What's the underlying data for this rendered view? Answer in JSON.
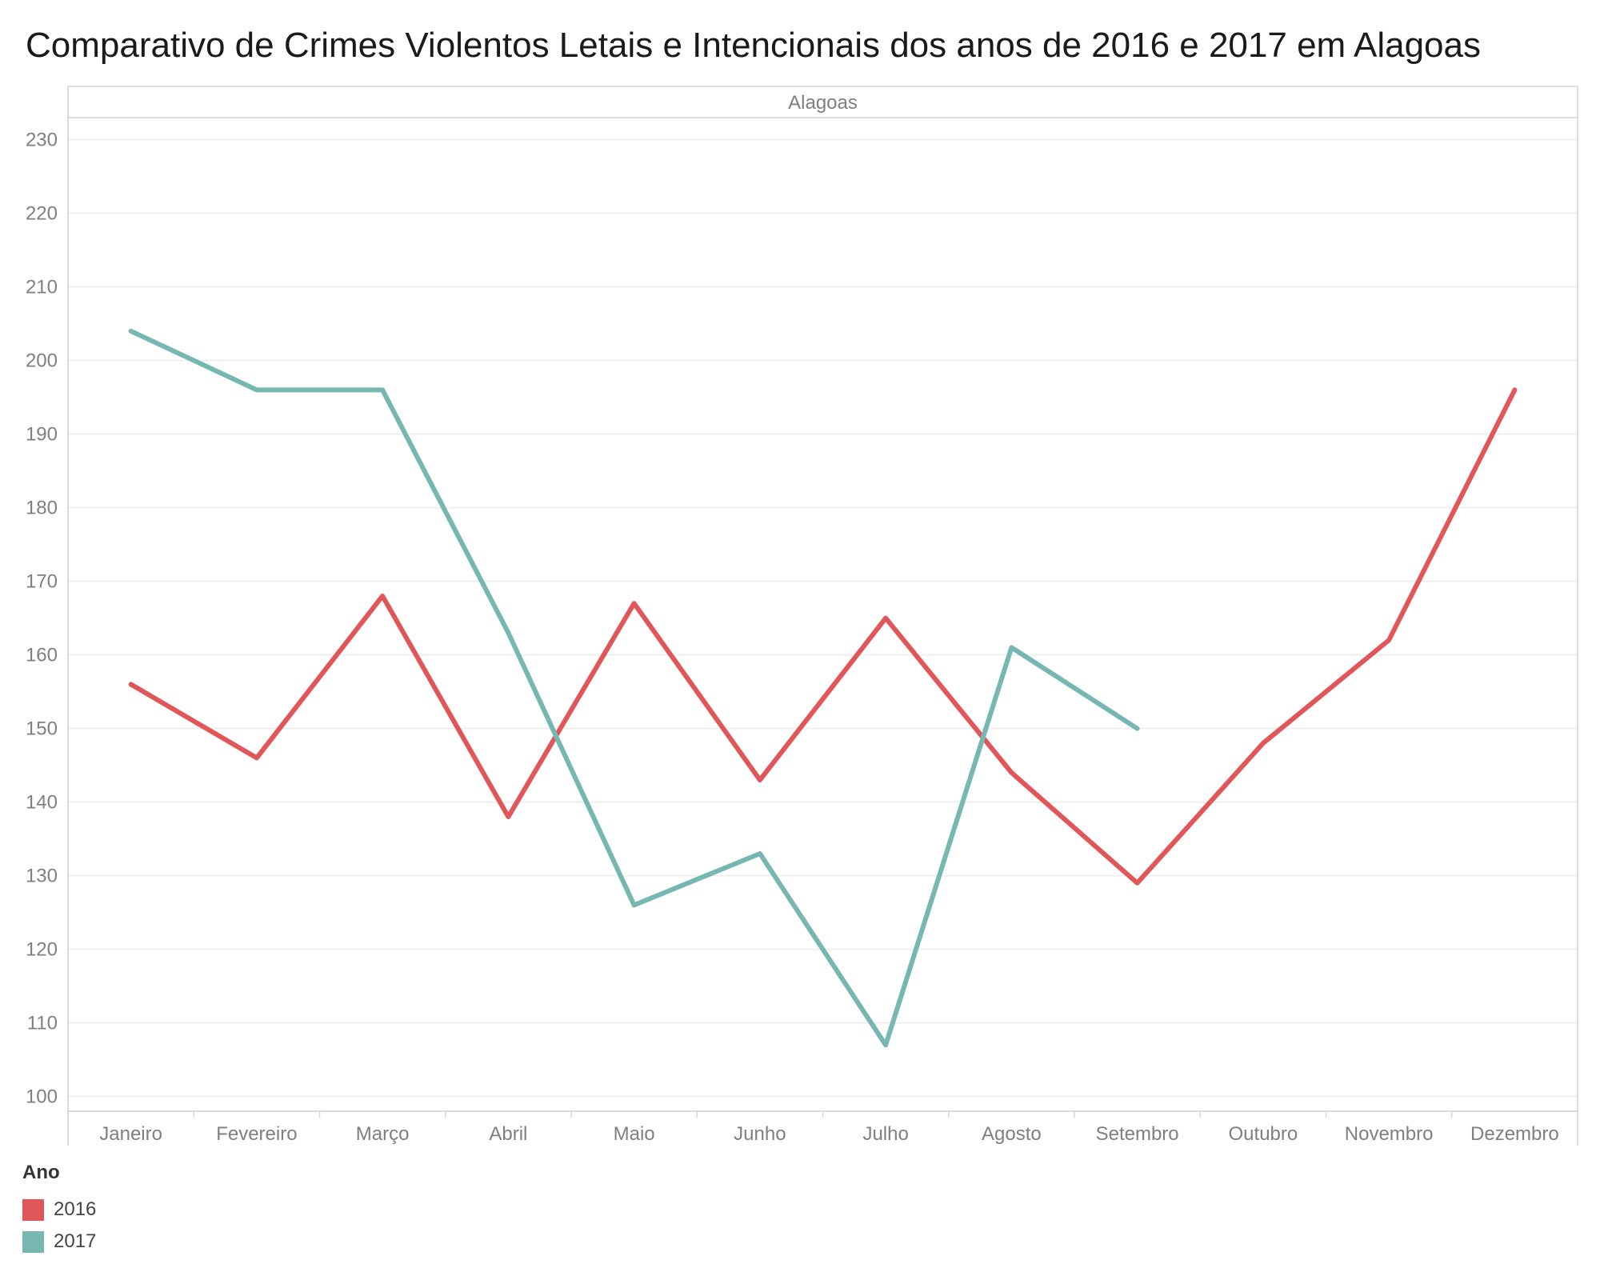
{
  "chart_data": {
    "type": "line",
    "title": "Comparativo de Crimes Violentos Letais e Intencionais dos anos de 2016 e 2017 em Alagoas",
    "panel_label": "Alagoas",
    "categories": [
      "Janeiro",
      "Fevereiro",
      "Março",
      "Abril",
      "Maio",
      "Junho",
      "Julho",
      "Agosto",
      "Setembro",
      "Outubro",
      "Novembro",
      "Dezembro"
    ],
    "y_ticks": [
      100,
      110,
      120,
      130,
      140,
      150,
      160,
      170,
      180,
      190,
      200,
      210,
      220,
      230
    ],
    "ylim": [
      98,
      233
    ],
    "xlabel": "",
    "ylabel": "",
    "grid": true,
    "legend": {
      "title": "Ano",
      "placement": "bottom-left"
    },
    "series": [
      {
        "name": "2016",
        "color": "#e15759",
        "values": [
          156,
          146,
          168,
          138,
          167,
          143,
          165,
          144,
          129,
          148,
          162,
          196
        ]
      },
      {
        "name": "2017",
        "color": "#76b7b2",
        "values": [
          204,
          196,
          196,
          163,
          126,
          133,
          107,
          161,
          150,
          null,
          null,
          null
        ]
      }
    ]
  }
}
